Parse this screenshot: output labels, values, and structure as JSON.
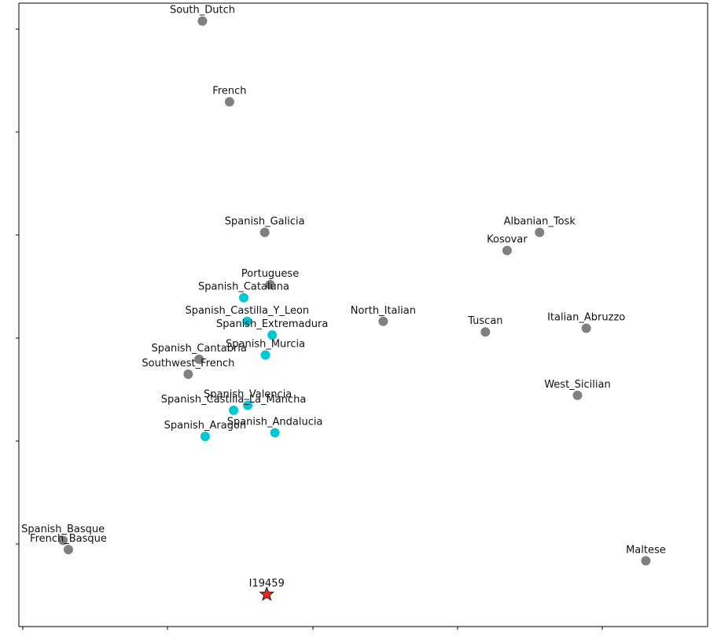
{
  "chart_data": {
    "type": "scatter",
    "grid": false,
    "legend": "none",
    "colors": {
      "reference": "#808080",
      "highlight": "#00c8d2",
      "target": "#e8291c",
      "target_edge": "#222222",
      "axis": "#000000"
    },
    "xlim": [
      0,
      1000
    ],
    "ylim": [
      0,
      1000
    ],
    "points": [
      {
        "label": "South_Dutch",
        "x": 270,
        "y": 970,
        "group": "reference"
      },
      {
        "label": "French",
        "x": 310,
        "y": 840,
        "group": "reference"
      },
      {
        "label": "Spanish_Galicia",
        "x": 362,
        "y": 630,
        "group": "reference"
      },
      {
        "label": "Portuguese",
        "x": 370,
        "y": 546,
        "group": "reference"
      },
      {
        "label": "Spanish_Cataluna",
        "x": 331,
        "y": 525,
        "group": "highlight"
      },
      {
        "label": "Spanish_Castilla_Y_Leon",
        "x": 336,
        "y": 487,
        "group": "highlight"
      },
      {
        "label": "Spanish_Extremadura",
        "x": 373,
        "y": 465,
        "group": "highlight"
      },
      {
        "label": "Spanish_Murcia",
        "x": 363,
        "y": 433,
        "group": "highlight"
      },
      {
        "label": "Spanish_Cantabria",
        "x": 265,
        "y": 426,
        "group": "reference"
      },
      {
        "label": "Southwest_French",
        "x": 249,
        "y": 402,
        "group": "reference"
      },
      {
        "label": "Spanish_Valencia",
        "x": 337,
        "y": 352,
        "group": "highlight"
      },
      {
        "label": "Spanish_Castilla_La_Mancha",
        "x": 316,
        "y": 344,
        "group": "highlight"
      },
      {
        "label": "Spanish_Aragon",
        "x": 274,
        "y": 302,
        "group": "highlight"
      },
      {
        "label": "Spanish_Andalucia",
        "x": 377,
        "y": 308,
        "group": "highlight"
      },
      {
        "label": "North_Italian",
        "x": 537,
        "y": 487,
        "group": "reference"
      },
      {
        "label": "Tuscan",
        "x": 688,
        "y": 470,
        "group": "reference"
      },
      {
        "label": "Kosovar",
        "x": 720,
        "y": 601,
        "group": "reference"
      },
      {
        "label": "Albanian_Tosk",
        "x": 768,
        "y": 630,
        "group": "reference"
      },
      {
        "label": "Italian_Abruzzo",
        "x": 837,
        "y": 476,
        "group": "reference"
      },
      {
        "label": "West_Sicilian",
        "x": 824,
        "y": 368,
        "group": "reference"
      },
      {
        "label": "Spanish_Basque",
        "x": 64,
        "y": 135,
        "group": "reference"
      },
      {
        "label": "French_Basque",
        "x": 72,
        "y": 120,
        "group": "reference"
      },
      {
        "label": "Maltese",
        "x": 925,
        "y": 102,
        "group": "reference"
      },
      {
        "label": "I19459",
        "x": 365,
        "y": 48,
        "group": "target"
      }
    ]
  }
}
